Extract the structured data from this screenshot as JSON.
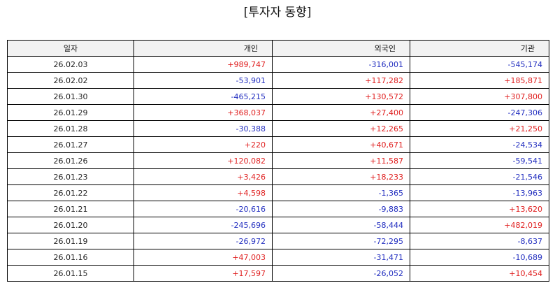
{
  "title": "[투자자 동향]",
  "headers": [
    "일자",
    "개인",
    "외국인",
    "기관"
  ],
  "colors": {
    "positive": "#e02020",
    "negative": "#2430c0"
  },
  "rows": [
    {
      "date": "26.02.03",
      "individual": "+989,747",
      "foreign": "-316,001",
      "institution": "-545,174"
    },
    {
      "date": "26.02.02",
      "individual": "-53,901",
      "foreign": "+117,282",
      "institution": "+185,871"
    },
    {
      "date": "26.01.30",
      "individual": "-465,215",
      "foreign": "+130,572",
      "institution": "+307,800"
    },
    {
      "date": "26.01.29",
      "individual": "+368,037",
      "foreign": "+27,400",
      "institution": "-247,306"
    },
    {
      "date": "26.01.28",
      "individual": "-30,388",
      "foreign": "+12,265",
      "institution": "+21,250"
    },
    {
      "date": "26.01.27",
      "individual": "+220",
      "foreign": "+40,671",
      "institution": "-24,534"
    },
    {
      "date": "26.01.26",
      "individual": "+120,082",
      "foreign": "+11,587",
      "institution": "-59,541"
    },
    {
      "date": "26.01.23",
      "individual": "+3,426",
      "foreign": "+18,233",
      "institution": "-21,546"
    },
    {
      "date": "26.01.22",
      "individual": "+4,598",
      "foreign": "-1,365",
      "institution": "-13,963"
    },
    {
      "date": "26.01.21",
      "individual": "-20,616",
      "foreign": "-9,883",
      "institution": "+13,620"
    },
    {
      "date": "26.01.20",
      "individual": "-245,696",
      "foreign": "-58,444",
      "institution": "+482,019"
    },
    {
      "date": "26.01.19",
      "individual": "-26,972",
      "foreign": "-72,295",
      "institution": "-8,637"
    },
    {
      "date": "26.01.16",
      "individual": "+47,003",
      "foreign": "-31,471",
      "institution": "-10,689"
    },
    {
      "date": "26.01.15",
      "individual": "+17,597",
      "foreign": "-26,052",
      "institution": "+10,454"
    }
  ]
}
